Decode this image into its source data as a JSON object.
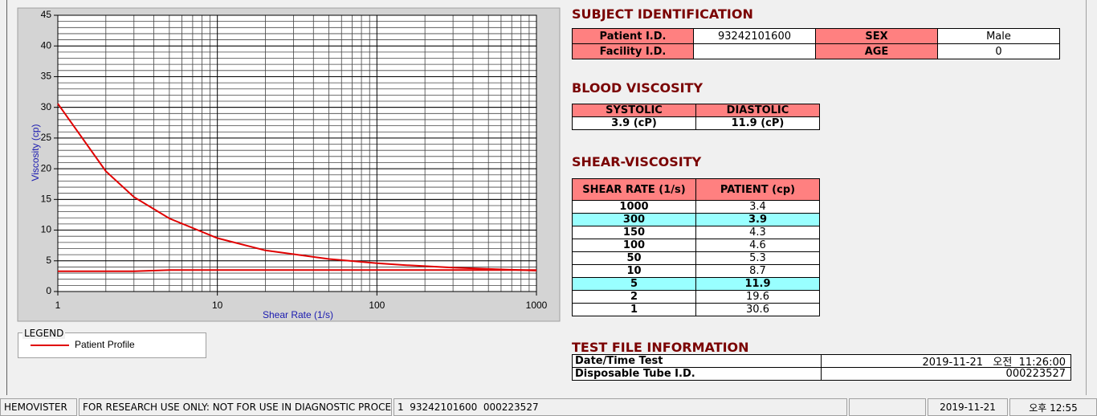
{
  "chart_data": {
    "type": "line",
    "x_label": "Shear Rate (1/s)",
    "y_label": "Viscosity (cp)",
    "x": [
      1,
      2,
      3,
      5,
      10,
      20,
      50,
      100,
      150,
      300,
      1000
    ],
    "series": [
      {
        "name": "Patient Profile",
        "color": "#e00000",
        "values": [
          30.6,
          19.6,
          15.4,
          11.9,
          8.7,
          6.7,
          5.3,
          4.6,
          4.3,
          3.9,
          3.4
        ]
      },
      {
        "color": "#e00000",
        "values": [
          3.3,
          3.3,
          3.3,
          3.5,
          3.5,
          3.5,
          3.5,
          3.5,
          3.5,
          3.5,
          3.5
        ]
      }
    ],
    "xlim": [
      1,
      1000
    ],
    "xticks": [
      1,
      10,
      100,
      1000
    ],
    "x_log": true,
    "ylim": [
      0,
      45
    ],
    "yticks": [
      0,
      5,
      10,
      15,
      20,
      25,
      30,
      35,
      40,
      45
    ],
    "grid": true,
    "minor_grid": true,
    "legend_title": "LEGEND"
  },
  "subject_identification": {
    "title": "SUBJECT IDENTIFICATION",
    "fields": [
      {
        "label": "Patient I.D.",
        "value": "93242101600"
      },
      {
        "label": "SEX",
        "value": "Male"
      },
      {
        "label": "Facility I.D."
      },
      {
        "label": "AGE",
        "value": 0
      }
    ]
  },
  "blood_viscosity": {
    "title": "BLOOD VISCOSITY",
    "headers": [
      "SYSTOLIC",
      "DIASTOLIC"
    ],
    "values": [
      "3.9 (cP)",
      "11.9 (cP)"
    ]
  },
  "shear_viscosity": {
    "title": "SHEAR-VISCOSITY",
    "headers": [
      "SHEAR RATE (1/s)",
      "PATIENT (cp)"
    ],
    "rows": [
      {
        "shear_rate": 1000,
        "patient": 3.4
      },
      {
        "shear_rate": 300,
        "patient": 3.9,
        "highlight": true
      },
      {
        "shear_rate": 150,
        "patient": 4.3
      },
      {
        "shear_rate": 100,
        "patient": 4.6
      },
      {
        "shear_rate": 50,
        "patient": 5.3
      },
      {
        "shear_rate": 10,
        "patient": 8.7
      },
      {
        "shear_rate": 5,
        "patient": 11.9,
        "highlight": true
      },
      {
        "shear_rate": 2,
        "patient": 19.6
      },
      {
        "shear_rate": 1,
        "patient": 30.6
      }
    ]
  },
  "test_file_information": {
    "title": "TEST FILE INFORMATION",
    "rows": [
      {
        "label": "Date/Time Test",
        "value": "2019-11-21   오전  11:26:00"
      },
      {
        "label": "Disposable Tube I.D.",
        "value": "000223527"
      }
    ]
  },
  "status_bar": {
    "cells": [
      "HEMOVISTER",
      "FOR RESEARCH USE ONLY: NOT FOR USE IN DIAGNOSTIC PROCEDURES",
      "1  93242101600  000223527",
      null,
      "2019-11-21",
      "오후 12:55"
    ]
  }
}
